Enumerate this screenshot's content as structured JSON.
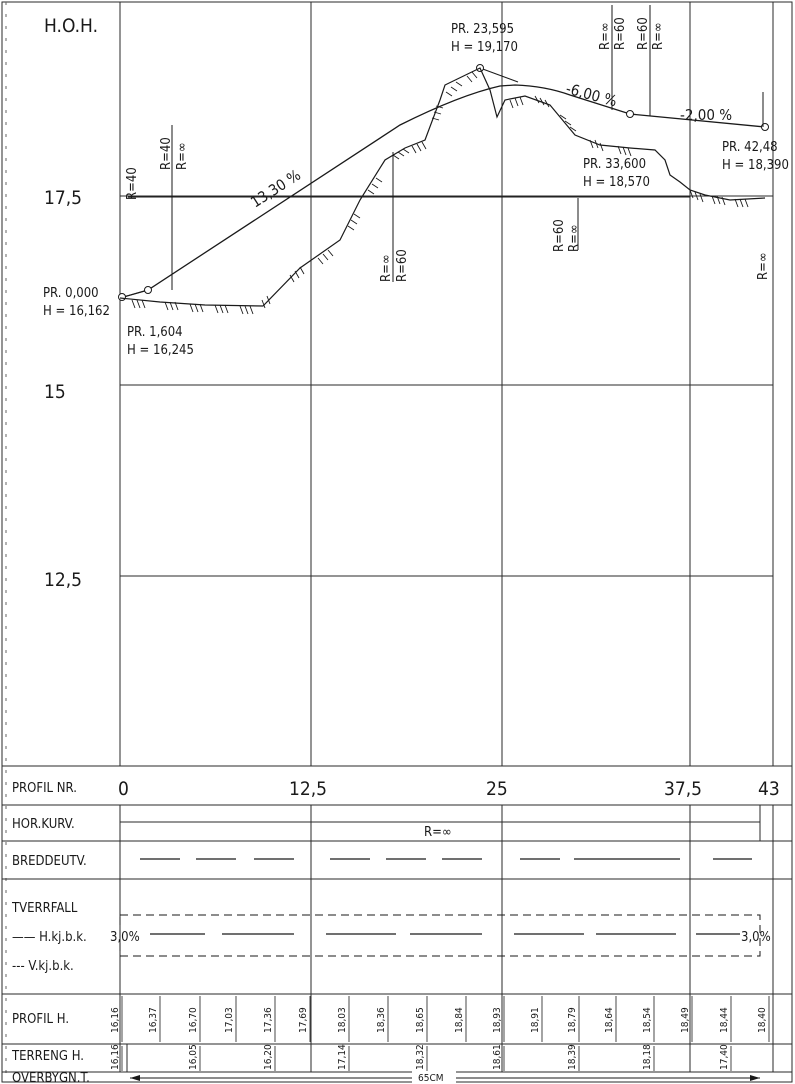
{
  "elevation_label": "H.O.H.",
  "elevation_ticks": [
    "17,5",
    "15",
    "12,5"
  ],
  "profile_axis_ticks": [
    "0",
    "12,5",
    "25",
    "37,5",
    "43"
  ],
  "points": [
    {
      "pr": "PR. 0,000",
      "h": "H = 16,162"
    },
    {
      "pr": "PR. 1,604",
      "h": "H = 16,245"
    },
    {
      "pr": "PR. 23,595",
      "h": "H = 19,170"
    },
    {
      "pr": "PR. 33,600",
      "h": "H = 18,570"
    },
    {
      "pr": "PR. 42,48",
      "h": "H = 18,390"
    }
  ],
  "grades": [
    "13,30 %",
    "-6,00 %",
    "-2,00 %"
  ],
  "radius_marks": [
    "R=40",
    "R=40",
    "R=∞",
    "R=∞",
    "R=60",
    "R=60",
    "R=∞",
    "R=∞",
    "R=60",
    "R=60",
    "R=∞",
    "R=∞"
  ],
  "table": {
    "rows": [
      "PROFIL NR.",
      "HOR.KURV.",
      "BREDDEUTV.",
      "TVERRFALL",
      "—— H.kj.b.k.",
      "--- V.kj.b.k.",
      "PROFIL H.",
      "TERRENG H.",
      "OVERBYGN.T."
    ],
    "hor_kurv_value": "R=∞",
    "tverrfall_left": "3,0%",
    "tverrfall_right": "3,0%",
    "overbygn_value": "65CM",
    "profil_h": [
      "16,16",
      "16,37",
      "16,70",
      "17,03",
      "17,36",
      "17,69",
      "18,03",
      "18,36",
      "18,65",
      "18,84",
      "18,93",
      "18,91",
      "18,79",
      "18,64",
      "18,54",
      "18,49",
      "18,44",
      "18,40"
    ],
    "terreng_h": [
      "16,16",
      "16,05",
      "16,20",
      "17,14",
      "18,32",
      "18,61",
      "18,39",
      "18,18",
      "17,40"
    ]
  }
}
